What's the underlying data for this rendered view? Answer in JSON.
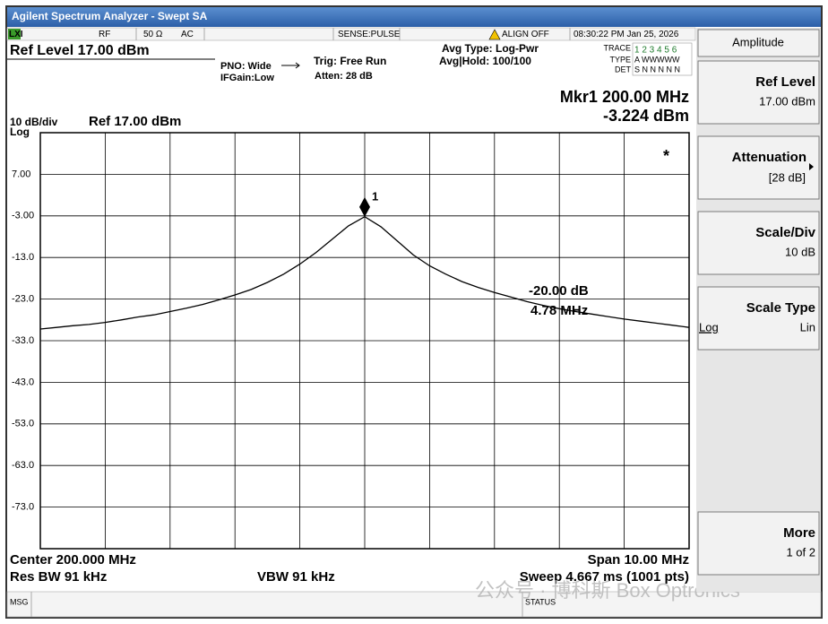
{
  "window": {
    "title": "Agilent Spectrum Analyzer - Swept SA"
  },
  "status_bar": {
    "lxi": "LXI",
    "rf": "RF",
    "impedance": "50 Ω",
    "coupling": "AC",
    "sense": "SENSE:PULSE",
    "align": "ALIGN OFF",
    "datetime": "08:30:22 PM Jan 25, 2026",
    "msg": "MSG",
    "status": "STATUS"
  },
  "settings": {
    "ref_level": "Ref Level 17.00 dBm",
    "pno": "PNO: Wide",
    "ifgain": "IFGain:Low",
    "trig": "Trig: Free Run",
    "atten": "Atten: 28 dB",
    "avg_type": "Avg Type: Log-Pwr",
    "avg_hold": "Avg|Hold: 100/100",
    "trace_label": "TRACE",
    "trace_nums": "1 2 3 4 5 6",
    "type_label": "TYPE",
    "type_vals": "A WWWWW",
    "det_label": "DET",
    "det_vals": "S N N N N N"
  },
  "chart_data": {
    "type": "line",
    "marker_readout": "Mkr1 200.00 MHz",
    "marker_value": "-3.224 dBm",
    "scale_label": "10 dB/div",
    "ref_label": "Ref 17.00 dBm",
    "scale_type": "Log",
    "x": [
      195,
      195.25,
      195.5,
      195.75,
      196,
      196.25,
      196.5,
      196.75,
      197,
      197.25,
      197.5,
      197.75,
      198,
      198.25,
      198.5,
      198.75,
      199,
      199.25,
      199.5,
      199.75,
      200,
      200.25,
      200.5,
      200.75,
      201,
      201.25,
      201.5,
      201.75,
      202,
      202.25,
      202.5,
      202.75,
      203,
      203.25,
      203.5,
      203.75,
      204,
      204.25,
      204.5,
      204.75,
      205
    ],
    "series": [
      {
        "color": "#000000",
        "values": [
          -30.2,
          -29.8,
          -29.4,
          -29.1,
          -28.6,
          -28.0,
          -27.3,
          -26.8,
          -26.0,
          -25.2,
          -24.3,
          -23.2,
          -22.0,
          -20.7,
          -19.0,
          -17.0,
          -14.6,
          -11.8,
          -8.6,
          -5.4,
          -3.2,
          -5.6,
          -9.0,
          -12.4,
          -15.0,
          -17.0,
          -18.8,
          -20.2,
          -21.4,
          -22.5,
          -23.6,
          -24.5,
          -25.3,
          -26.0,
          -26.6,
          -27.2,
          -27.8,
          -28.3,
          -28.8,
          -29.3,
          -29.8
        ]
      }
    ],
    "xlim": [
      195,
      205
    ],
    "ylim": [
      -83,
      17
    ],
    "xticks": [
      196,
      197,
      198,
      199,
      200,
      201,
      202,
      203,
      204
    ],
    "yticks": [
      {
        "value": 7,
        "label": "7.00"
      },
      {
        "value": -3,
        "label": "-3.00"
      },
      {
        "value": -13,
        "label": "-13.0"
      },
      {
        "value": -23,
        "label": "-23.0"
      },
      {
        "value": -33,
        "label": "-33.0"
      },
      {
        "value": -43,
        "label": "-43.0"
      },
      {
        "value": -53,
        "label": "-53.0"
      },
      {
        "value": -63,
        "label": "-63.0"
      },
      {
        "value": -73,
        "label": "-73.0"
      }
    ],
    "grid": true,
    "marker": {
      "x": 200,
      "y": -3.224,
      "label": "1"
    },
    "delta_db": "-20.00 dB",
    "delta_freq": "4.78 MHz",
    "flag": "*",
    "center": "Center 200.000 MHz",
    "span": "Span 10.00 MHz",
    "rbw": "Res BW 91 kHz",
    "vbw": "VBW 91 kHz",
    "sweep": "Sweep  4.667 ms (1001 pts)"
  },
  "softkeys": {
    "title": "Amplitude",
    "keys": [
      {
        "label": "Ref Level",
        "value": "17.00 dBm"
      },
      {
        "label": "Attenuation",
        "value": "[28 dB]"
      },
      {
        "label": "Scale/Div",
        "value": "10 dB"
      },
      {
        "label": "Scale Type",
        "option_a": "Log",
        "option_b": "Lin"
      },
      {
        "label": "More",
        "value": "1 of 2"
      }
    ]
  },
  "watermark": "公众号 · 博科斯 Box Optronics"
}
